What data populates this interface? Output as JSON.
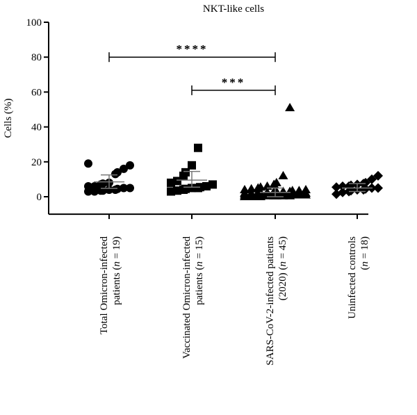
{
  "chart_data": {
    "type": "scatter",
    "title": "NKT-like cells",
    "ylabel": "Cells (%)",
    "ylim": [
      -10,
      100
    ],
    "yticks": [
      0,
      20,
      40,
      60,
      80,
      100
    ],
    "categories": [
      {
        "lines": [
          "Total Omicron-infected",
          "patients (",
          "n",
          " = 19)"
        ],
        "n": 19,
        "marker": "circle",
        "mean": 8.5,
        "sd_upper": 12.5,
        "sd_lower": 4.8,
        "values": [
          3,
          3,
          3.5,
          3.5,
          4,
          4,
          4.5,
          5,
          5,
          6,
          6,
          7,
          7.5,
          8,
          13,
          14,
          16,
          18,
          19
        ]
      },
      {
        "lines": [
          "Vaccinated Omicron-infected",
          "patients (",
          "n",
          " = 15)"
        ],
        "n": 15,
        "marker": "square",
        "mean": 9.5,
        "sd_upper": 14.5,
        "sd_lower": 5.5,
        "values": [
          3,
          3.5,
          4,
          4.5,
          5,
          5,
          5.5,
          6,
          7,
          8,
          9,
          12,
          14,
          18,
          28
        ]
      },
      {
        "lines": [
          "SARS-CoV-2-infected patients",
          "(2020) (",
          "n",
          " = 45)"
        ],
        "n": 45,
        "marker": "triangle",
        "mean": 2.5,
        "sd_upper": 5,
        "sd_lower": 0,
        "values": [
          0,
          0,
          0,
          0,
          0.5,
          0.5,
          0.5,
          0.5,
          0.5,
          1,
          1,
          1,
          1,
          1,
          1,
          1,
          1.5,
          1.5,
          1.5,
          1.5,
          1.5,
          2,
          2,
          2,
          2,
          2,
          2.5,
          2.5,
          2.5,
          3,
          3,
          3,
          3,
          3.5,
          3.5,
          4,
          4,
          4.5,
          5,
          5.5,
          6,
          7,
          8,
          12,
          51
        ]
      },
      {
        "lines": [
          "Uninfected controls",
          "(",
          "n",
          " = 18)"
        ],
        "n": 18,
        "marker": "diamond",
        "mean": 5,
        "sd_upper": 7.5,
        "sd_lower": 3,
        "values": [
          1.5,
          2.5,
          3,
          3.5,
          4,
          4,
          4.5,
          5,
          5,
          5.5,
          6,
          6,
          6.5,
          7,
          7.5,
          8,
          10,
          12
        ]
      }
    ],
    "significance": [
      {
        "from": 0,
        "to": 2,
        "label": "****",
        "y": 80
      },
      {
        "from": 1,
        "to": 2,
        "label": "***",
        "y": 61
      }
    ]
  }
}
